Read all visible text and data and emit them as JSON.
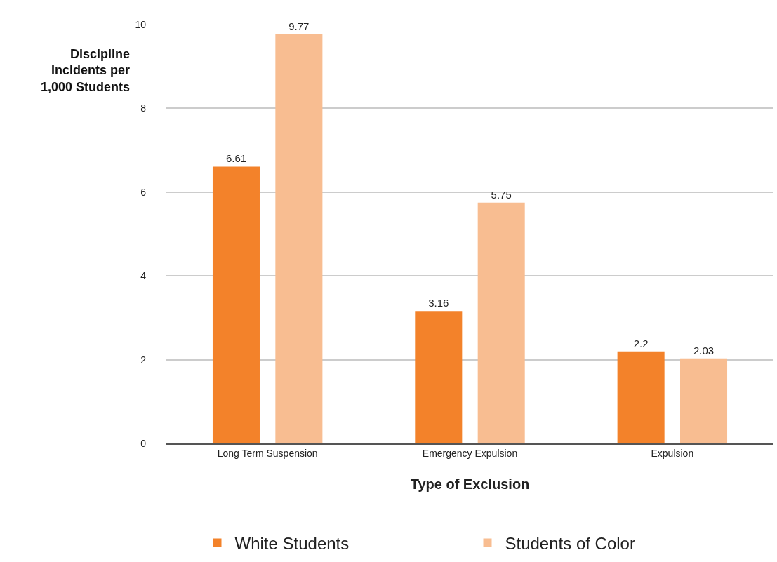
{
  "chart_data": {
    "type": "bar",
    "xlabel": "Type of Exclusion",
    "ylabel": "Discipline\nIncidents per\n1,000 Students",
    "categories": [
      "Long Term Suspension",
      "Emergency Expulsion",
      "Expulsion"
    ],
    "series": [
      {
        "name": "White Students",
        "color": "#f3822a",
        "values": [
          6.61,
          3.16,
          2.2
        ]
      },
      {
        "name": "Students of Color",
        "color": "#f8bd91",
        "values": [
          9.77,
          5.75,
          2.03
        ]
      }
    ],
    "ylim": [
      0,
      10
    ],
    "yticks": [
      0,
      2,
      4,
      6,
      8,
      10
    ],
    "grid": "y",
    "legend": "bottom",
    "data_labels": true
  }
}
